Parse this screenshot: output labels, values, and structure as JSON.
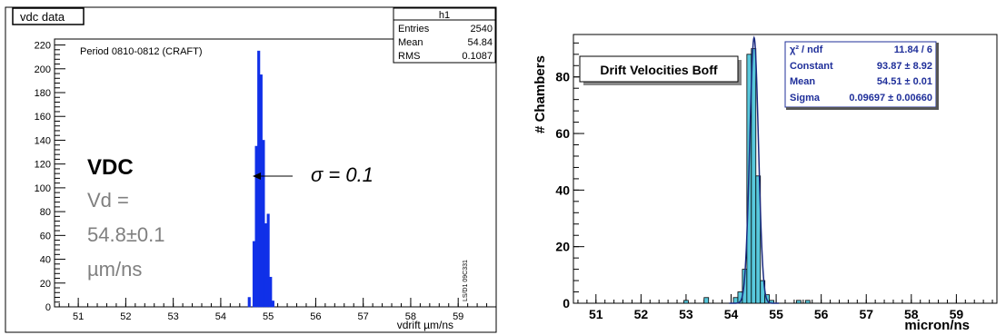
{
  "colors": {
    "left_fill": "#1030e8",
    "right_fill": "#58c8dc",
    "right_fit": "#1a2a80",
    "stats_text": "#1f2f9a",
    "vd_gray": "#808080"
  },
  "chart_data": [
    {
      "type": "histogram",
      "panel_title": "vdc data",
      "stats": {
        "name": "h1",
        "rows": [
          {
            "label": "Entries",
            "value": "2540"
          },
          {
            "label": "Mean",
            "value": "54.84"
          },
          {
            "label": "RMS",
            "value": "0.1087"
          }
        ]
      },
      "period_label": "Period 0810-0812 (CRAFT)",
      "xlabel": "vdrift µm/ns",
      "xlim": [
        50.5,
        59.8
      ],
      "ylim": [
        0,
        225
      ],
      "x_ticks": [
        "51",
        "52",
        "53",
        "54",
        "55",
        "56",
        "57",
        "58",
        "59"
      ],
      "y_ticks": [
        "0",
        "20",
        "40",
        "60",
        "80",
        "100",
        "120",
        "140",
        "160",
        "180",
        "200",
        "220"
      ],
      "bins": [
        {
          "x": 54.6,
          "y": 8
        },
        {
          "x": 54.7,
          "y": 55
        },
        {
          "x": 54.75,
          "y": 135
        },
        {
          "x": 54.8,
          "y": 215
        },
        {
          "x": 54.85,
          "y": 195
        },
        {
          "x": 54.9,
          "y": 140
        },
        {
          "x": 54.95,
          "y": 70
        },
        {
          "x": 55.0,
          "y": 78
        },
        {
          "x": 55.05,
          "y": 25
        },
        {
          "x": 55.1,
          "y": 5
        }
      ],
      "annotations": {
        "vdc": "VDC",
        "vd_eq": "Vd =",
        "vd_val": "54.8±0.1",
        "vd_unit": "µm/ns",
        "sigma": "σ = 0.1",
        "side_tag": "LS/D1 09C331"
      }
    },
    {
      "type": "histogram",
      "title": "Drift Velocities Boff",
      "xlabel": "micron/ns",
      "ylabel": "# Chambers",
      "xlim": [
        50.5,
        59.9
      ],
      "ylim": [
        0,
        95
      ],
      "x_ticks": [
        "51",
        "52",
        "53",
        "54",
        "55",
        "56",
        "57",
        "58",
        "59"
      ],
      "y_ticks": [
        "0",
        "20",
        "40",
        "60",
        "80"
      ],
      "fit": {
        "mean": 54.51,
        "sigma": 0.097,
        "constant": 93.87
      },
      "stats": {
        "rows": [
          {
            "label": "χ² / ndf",
            "value": "11.84 / 6"
          },
          {
            "label": "Constant",
            "value": "93.87 ± 8.92"
          },
          {
            "label": "Mean",
            "value": "54.51 ± 0.01"
          },
          {
            "label": "Sigma",
            "value": "0.09697 ± 0.00660"
          }
        ]
      },
      "bins": [
        {
          "x": 53.0,
          "y": 1
        },
        {
          "x": 53.45,
          "y": 2
        },
        {
          "x": 54.1,
          "y": 2
        },
        {
          "x": 54.2,
          "y": 4
        },
        {
          "x": 54.3,
          "y": 12
        },
        {
          "x": 54.4,
          "y": 88
        },
        {
          "x": 54.5,
          "y": 90
        },
        {
          "x": 54.6,
          "y": 45
        },
        {
          "x": 54.7,
          "y": 8
        },
        {
          "x": 54.8,
          "y": 3
        },
        {
          "x": 54.9,
          "y": 1
        },
        {
          "x": 55.5,
          "y": 1
        },
        {
          "x": 55.7,
          "y": 1
        }
      ]
    }
  ]
}
